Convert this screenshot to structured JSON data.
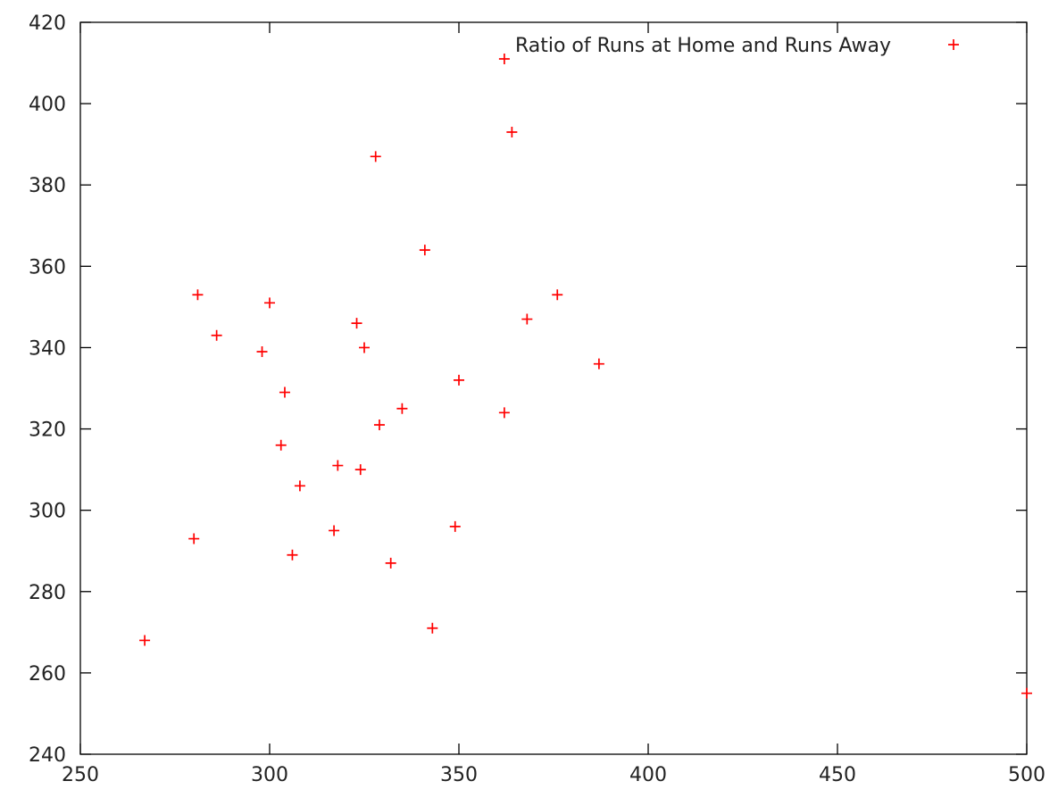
{
  "chart_data": {
    "type": "scatter",
    "title": "",
    "xlabel": "",
    "ylabel": "",
    "xlim": [
      250,
      500
    ],
    "ylim": [
      240,
      420
    ],
    "xticks": [
      250,
      300,
      350,
      400,
      450,
      500
    ],
    "yticks": [
      240,
      260,
      280,
      300,
      320,
      340,
      360,
      380,
      400,
      420
    ],
    "grid": false,
    "legend_position": "top-right",
    "series": [
      {
        "name": "Ratio of Runs at Home and Runs Away",
        "color": "#ff0000",
        "marker": "plus",
        "points": [
          {
            "x": 362,
            "y": 411
          },
          {
            "x": 364,
            "y": 393
          },
          {
            "x": 328,
            "y": 387
          },
          {
            "x": 341,
            "y": 364
          },
          {
            "x": 281,
            "y": 353
          },
          {
            "x": 376,
            "y": 353
          },
          {
            "x": 300,
            "y": 351
          },
          {
            "x": 368,
            "y": 347
          },
          {
            "x": 323,
            "y": 346
          },
          {
            "x": 286,
            "y": 343
          },
          {
            "x": 325,
            "y": 340
          },
          {
            "x": 298,
            "y": 339
          },
          {
            "x": 387,
            "y": 336
          },
          {
            "x": 350,
            "y": 332
          },
          {
            "x": 304,
            "y": 329
          },
          {
            "x": 335,
            "y": 325
          },
          {
            "x": 362,
            "y": 324
          },
          {
            "x": 329,
            "y": 321
          },
          {
            "x": 303,
            "y": 316
          },
          {
            "x": 318,
            "y": 311
          },
          {
            "x": 324,
            "y": 310
          },
          {
            "x": 308,
            "y": 306
          },
          {
            "x": 349,
            "y": 296
          },
          {
            "x": 317,
            "y": 295
          },
          {
            "x": 280,
            "y": 293
          },
          {
            "x": 306,
            "y": 289
          },
          {
            "x": 332,
            "y": 287
          },
          {
            "x": 343,
            "y": 271
          },
          {
            "x": 267,
            "y": 268
          },
          {
            "x": 500,
            "y": 255
          }
        ]
      }
    ]
  }
}
